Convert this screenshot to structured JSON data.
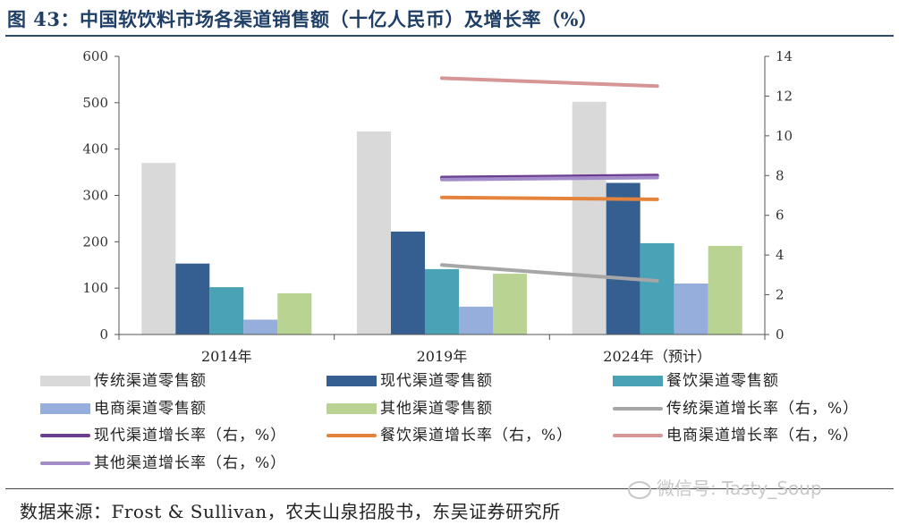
{
  "figure": {
    "title": "图 43：中国软饮料市场各渠道销售额（十亿人民币）及增长率（%）",
    "source": "数据来源：Frost & Sullivan，农夫山泉招股书，东吴证券研究所",
    "watermark": "微信号: Tasty_Soup"
  },
  "chart_data": {
    "type": "bar",
    "categories": [
      "2014年",
      "2019年",
      "2024年（预计）"
    ],
    "y_left": {
      "min": 0,
      "max": 600,
      "ticks": [
        0,
        100,
        200,
        300,
        400,
        500,
        600
      ]
    },
    "y_right": {
      "min": 0,
      "max": 14,
      "ticks": [
        0,
        2,
        4,
        6,
        8,
        10,
        12,
        14
      ]
    },
    "grid": false,
    "legend_position": "bottom",
    "bar_series": [
      {
        "name": "传统渠道零售额",
        "color": "#d9d9d9",
        "values": [
          370,
          438,
          502
        ]
      },
      {
        "name": "现代渠道零售额",
        "color": "#365f91",
        "values": [
          153,
          222,
          327
        ]
      },
      {
        "name": "餐饮渠道零售额",
        "color": "#4aa2b6",
        "values": [
          102,
          141,
          197
        ]
      },
      {
        "name": "电商渠道零售额",
        "color": "#95aedb",
        "values": [
          32,
          60,
          110
        ]
      },
      {
        "name": "其他渠道零售额",
        "color": "#b8d392",
        "values": [
          89,
          131,
          191
        ]
      }
    ],
    "line_series": [
      {
        "name": "传统渠道增长率（右，%）",
        "color": "#a6a6a6",
        "x_from": "2019年",
        "x_to": "2024年（预计）",
        "values": [
          3.5,
          2.7
        ]
      },
      {
        "name": "现代渠道增长率（右，%）",
        "color": "#6a3d8e",
        "x_from": "2019年",
        "x_to": "2024年（预计）",
        "values": [
          7.9,
          8.0
        ]
      },
      {
        "name": "餐饮渠道增长率（右，%）",
        "color": "#e4843c",
        "x_from": "2019年",
        "x_to": "2024年（预计）",
        "values": [
          6.9,
          6.8
        ]
      },
      {
        "name": "电商渠道增长率（右，%）",
        "color": "#d69696",
        "x_from": "2019年",
        "x_to": "2024年（预计）",
        "values": [
          12.9,
          12.5
        ]
      },
      {
        "name": "其他渠道增长率（右，%）",
        "color": "#a38cc9",
        "x_from": "2019年",
        "x_to": "2024年（预计）",
        "values": [
          7.8,
          7.9
        ]
      }
    ],
    "legend_order": [
      "传统渠道零售额",
      "现代渠道零售额",
      "餐饮渠道零售额",
      "电商渠道零售额",
      "其他渠道零售额",
      "传统渠道增长率（右，%）",
      "现代渠道增长率（右，%）",
      "餐饮渠道增长率（右，%）",
      "电商渠道增长率（右，%）",
      "其他渠道增长率（右，%）"
    ]
  }
}
